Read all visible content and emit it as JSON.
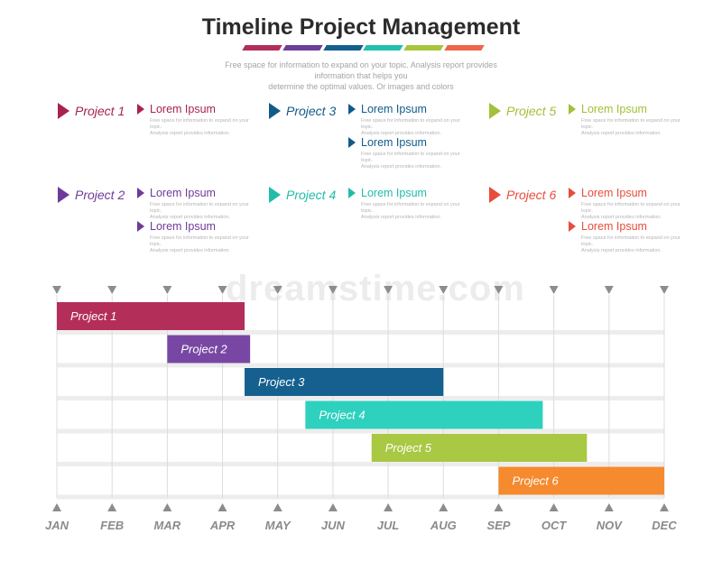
{
  "header": {
    "title": "Timeline Project Management",
    "subtitle_line1": "Free space for information to expand on your topic. Analysis report provides information that helps you",
    "subtitle_line2": "determine the optimal values. Or images and colors",
    "stripe_colors": [
      "#b22e5c",
      "#6e3e99",
      "#155f8e",
      "#23bfae",
      "#a6c53d",
      "#ee6648"
    ]
  },
  "legend": {
    "projects": [
      {
        "label": "Project 1",
        "color": "#a8234f",
        "items": [
          {
            "title": "Lorem Ipsum",
            "desc1": "Free space for information to expand on your topic.",
            "desc2": "Analysis report provides information."
          }
        ]
      },
      {
        "label": "Project 2",
        "color": "#6f3b98",
        "items": [
          {
            "title": "Lorem Ipsum",
            "desc1": "Free space for information to expand on your topic.",
            "desc2": "Analysis report provides information."
          },
          {
            "title": "Lorem Ipsum",
            "desc1": "Free space for information to expand on your topic.",
            "desc2": "Analysis report provides information."
          }
        ]
      },
      {
        "label": "Project 3",
        "color": "#125b89",
        "items": [
          {
            "title": "Lorem Ipsum",
            "desc1": "Free space for information to expand on your topic.",
            "desc2": "Analysis report provides information."
          },
          {
            "title": "Lorem Ipsum",
            "desc1": "Free space for information to expand on your topic.",
            "desc2": "Analysis report provides information."
          }
        ]
      },
      {
        "label": "Project 4",
        "color": "#21bca9",
        "items": [
          {
            "title": "Lorem Ipsum",
            "desc1": "Free space for information to expand on your topic.",
            "desc2": "Analysis report provides information."
          }
        ]
      },
      {
        "label": "Project 5",
        "color": "#a3c03a",
        "items": [
          {
            "title": "Lorem Ipsum",
            "desc1": "Free space for information to expand on your topic.",
            "desc2": "Analysis report provides information."
          }
        ]
      },
      {
        "label": "Project 6",
        "color": "#e74c3c",
        "items": [
          {
            "title": "Lorem Ipsum",
            "desc1": "Free space for information to expand on your topic.",
            "desc2": "Analysis report provides information."
          },
          {
            "title": "Lorem Ipsum",
            "desc1": "Free space for information to expand on your topic.",
            "desc2": "Analysis report provides information."
          }
        ]
      }
    ]
  },
  "watermark": "dreamstime.com",
  "chart_data": {
    "type": "gantt",
    "categories": [
      "JAN",
      "FEB",
      "MAR",
      "APR",
      "MAY",
      "JUN",
      "JUL",
      "AUG",
      "SEP",
      "OCT",
      "NOV",
      "DEC"
    ],
    "tasks": [
      {
        "name": "Project 1",
        "start": 0,
        "end": 3.4,
        "color": "#b42e5a"
      },
      {
        "name": "Project 2",
        "start": 2,
        "end": 3.5,
        "color": "#7847a3"
      },
      {
        "name": "Project 3",
        "start": 3.4,
        "end": 7.0,
        "color": "#15608f"
      },
      {
        "name": "Project 4",
        "start": 4.5,
        "end": 8.8,
        "color": "#2ed1bd"
      },
      {
        "name": "Project 5",
        "start": 5.7,
        "end": 9.6,
        "color": "#a9c843"
      },
      {
        "name": "Project 6",
        "start": 8.0,
        "end": 11.0,
        "color": "#f58a2e"
      }
    ],
    "grid": true
  }
}
